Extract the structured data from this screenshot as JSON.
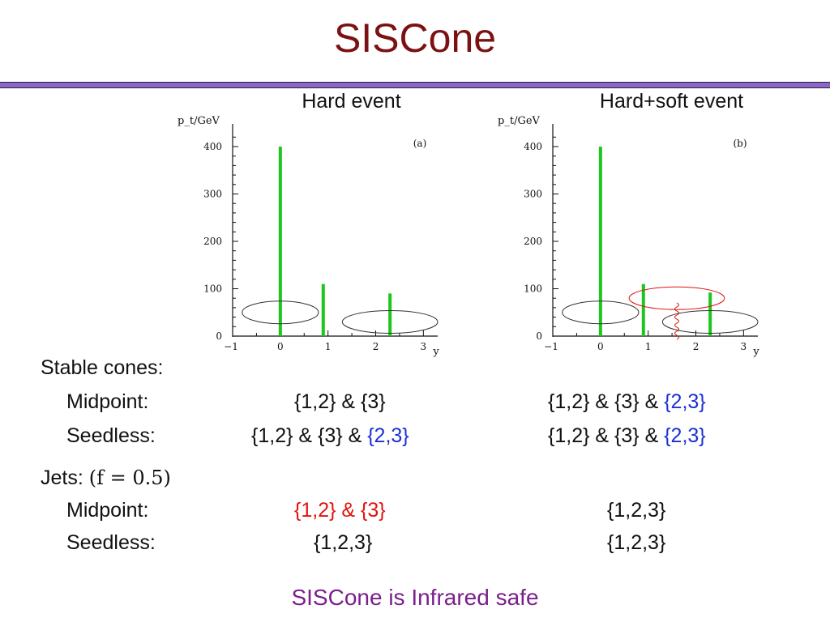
{
  "slide": {
    "title": "SISCone",
    "footer": "SISCone is Infrared safe"
  },
  "table": {
    "stable_heading": "Stable cones:",
    "jets_heading": "Jets:",
    "jets_param": "(f = 0.5)",
    "midpoint_label": "Midpoint:",
    "seedless_label": "Seedless:",
    "stable": {
      "midpoint": {
        "hard": [
          "{1,2} & {3}"
        ],
        "hardsoft": [
          "{1,2} & {3} & ",
          "{2,3}"
        ]
      },
      "seedless": {
        "hard": [
          "{1,2} & {3} & ",
          "{2,3}"
        ],
        "hardsoft": [
          "{1,2} & {3} & ",
          "{2,3}"
        ]
      }
    },
    "jets": {
      "midpoint": {
        "hard": "{1,2} & {3}",
        "hardsoft": "{1,2,3}"
      },
      "seedless": {
        "hard": "{1,2,3}",
        "hardsoft": "{1,2,3}"
      }
    }
  },
  "colors": {
    "title": "#7b1113",
    "rule": "#8a66c9",
    "bar": "#1ec51e",
    "blue": "#1b2fd6",
    "red": "#e0140f",
    "footer": "#7a1f8c"
  },
  "chart_data": [
    {
      "type": "bar",
      "title": "Hard event",
      "panel_tag": "(a)",
      "ylabel": "p_t/GeV",
      "xlabel": "y",
      "xlim": [
        -1,
        3.3
      ],
      "ylim": [
        0,
        400
      ],
      "xticks": [
        -1,
        0,
        1,
        2,
        3
      ],
      "yticks": [
        0,
        100,
        200,
        300,
        400
      ],
      "x": [
        0,
        0.9,
        2.3
      ],
      "values": [
        400,
        110,
        90
      ],
      "cones": [
        {
          "center_y": 0,
          "center_pt": 50,
          "half_width": 0.8,
          "half_height": 14,
          "color": "#333333"
        },
        {
          "center_y": 2.3,
          "center_pt": 30,
          "half_width": 1.0,
          "half_height": 14,
          "color": "#333333"
        }
      ],
      "soft_particle": null
    },
    {
      "type": "bar",
      "title": "Hard+soft event",
      "panel_tag": "(b)",
      "ylabel": "p_t/GeV",
      "xlabel": "y",
      "xlim": [
        -1,
        3.3
      ],
      "ylim": [
        0,
        400
      ],
      "xticks": [
        -1,
        0,
        1,
        2,
        3
      ],
      "yticks": [
        0,
        100,
        200,
        300,
        400
      ],
      "x": [
        0,
        0.9,
        2.3
      ],
      "values": [
        400,
        110,
        92
      ],
      "cones": [
        {
          "center_y": 0,
          "center_pt": 50,
          "half_width": 0.8,
          "half_height": 14,
          "color": "#333333"
        },
        {
          "center_y": 2.3,
          "center_pt": 30,
          "half_width": 1.0,
          "half_height": 14,
          "color": "#333333"
        },
        {
          "center_y": 1.6,
          "center_pt": 80,
          "half_width": 1.0,
          "half_height": 14,
          "color": "#e0140f"
        }
      ],
      "soft_particle": {
        "y": 1.6,
        "pt_top": 70
      }
    }
  ]
}
